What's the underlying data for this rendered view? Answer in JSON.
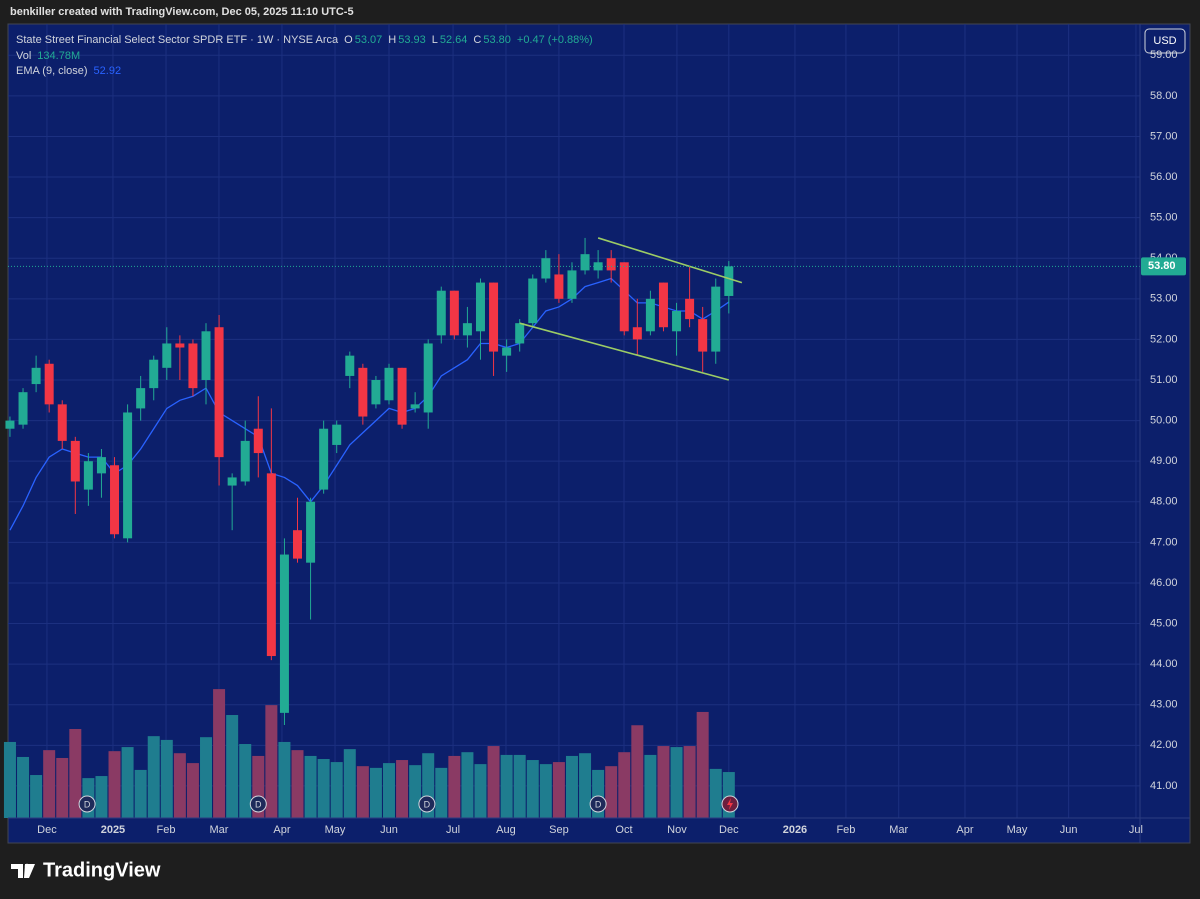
{
  "caption": "benkiller created with TradingView.com, Dec 05, 2025 11:10 UTC-5",
  "brand": "TradingView",
  "currency_button": "USD",
  "chart_data": {
    "type": "candlestick",
    "title": "State Street Financial Select Sector SPDR ETF · 1W · NYSE Arca",
    "ohlc_legend": [
      {
        "key": "O",
        "label": "53.07"
      },
      {
        "key": "H",
        "label": "53.93"
      },
      {
        "key": "L",
        "label": "52.64"
      },
      {
        "key": "C",
        "label": "53.80"
      }
    ],
    "change_label": "+0.47 (+0.88%)",
    "up_color": "#22ab94",
    "down_color": "#f23645",
    "x": [
      0,
      1,
      2,
      3,
      4,
      5,
      6,
      7,
      8,
      9,
      10,
      11,
      12,
      13,
      14,
      15,
      16,
      17,
      18,
      19,
      20,
      21,
      22,
      23,
      24,
      25,
      26,
      27,
      28,
      29,
      30,
      31,
      32,
      33,
      34,
      35,
      36,
      37,
      38,
      39,
      40,
      41,
      42,
      43,
      44,
      45,
      46,
      47,
      48,
      49,
      50,
      51,
      52,
      53,
      54,
      55
    ],
    "open": [
      49.8,
      49.9,
      50.9,
      51.4,
      50.4,
      49.5,
      48.3,
      48.7,
      48.9,
      47.1,
      50.3,
      50.8,
      51.3,
      51.9,
      51.9,
      51.0,
      52.3,
      48.4,
      48.5,
      49.8,
      48.7,
      42.8,
      47.3,
      46.5,
      48.3,
      49.4,
      51.1,
      51.3,
      50.4,
      50.5,
      51.3,
      50.3,
      50.2,
      52.1,
      53.2,
      52.1,
      52.2,
      53.4,
      51.6,
      51.9,
      52.4,
      53.5,
      53.6,
      53.0,
      53.7,
      53.7,
      54.0,
      53.9,
      52.3,
      52.2,
      53.4,
      52.2,
      53.0,
      52.5,
      51.7,
      53.07
    ],
    "high": [
      50.1,
      50.8,
      51.6,
      51.5,
      50.5,
      49.6,
      49.2,
      49.3,
      49.1,
      50.4,
      51.1,
      51.6,
      52.3,
      52.1,
      52.0,
      52.4,
      52.6,
      48.7,
      50.0,
      50.6,
      50.3,
      47.1,
      48.1,
      48.1,
      50.0,
      50.0,
      51.7,
      51.4,
      51.1,
      51.4,
      51.3,
      50.7,
      52.0,
      53.3,
      53.2,
      52.8,
      53.5,
      53.4,
      52.0,
      52.5,
      53.6,
      54.2,
      54.1,
      53.9,
      54.5,
      54.2,
      54.2,
      53.9,
      53.0,
      53.2,
      53.4,
      52.9,
      53.8,
      52.8,
      53.5,
      53.93
    ],
    "low": [
      49.6,
      49.8,
      50.7,
      50.2,
      49.3,
      47.7,
      47.9,
      48.1,
      47.1,
      47.0,
      50.0,
      50.5,
      51.0,
      51.0,
      50.6,
      50.4,
      48.4,
      47.3,
      48.4,
      48.6,
      44.1,
      42.5,
      46.5,
      45.1,
      48.2,
      49.2,
      50.8,
      49.9,
      50.3,
      50.4,
      49.8,
      50.2,
      49.8,
      51.9,
      52.0,
      51.8,
      51.5,
      51.1,
      51.2,
      51.7,
      52.3,
      53.4,
      52.9,
      52.9,
      53.6,
      53.5,
      53.4,
      52.1,
      51.6,
      52.1,
      52.2,
      51.6,
      52.3,
      51.2,
      51.4,
      52.64
    ],
    "close": [
      50.0,
      50.7,
      51.3,
      50.4,
      49.5,
      48.5,
      49.0,
      49.1,
      47.2,
      50.2,
      50.8,
      51.5,
      51.9,
      51.8,
      50.8,
      52.2,
      49.1,
      48.6,
      49.5,
      49.2,
      44.2,
      46.7,
      46.6,
      48.0,
      49.8,
      49.9,
      51.6,
      50.1,
      51.0,
      51.3,
      49.9,
      50.4,
      51.9,
      53.2,
      52.1,
      52.4,
      53.4,
      51.7,
      51.8,
      52.4,
      53.5,
      54.0,
      53.0,
      53.7,
      54.1,
      53.9,
      53.7,
      52.2,
      52.0,
      53.0,
      52.3,
      52.7,
      52.5,
      51.7,
      53.3,
      53.8
    ],
    "volume": {
      "name": "Vol",
      "value_label": "134.78M",
      "up_color": "#1f7d8f",
      "down_color": "#8a3a64",
      "values": [
        223,
        179,
        126,
        199,
        176,
        261,
        117,
        123,
        196,
        208,
        141,
        240,
        229,
        190,
        161,
        237,
        378,
        302,
        217,
        182,
        331,
        223,
        199,
        182,
        173,
        164,
        202,
        152,
        147,
        161,
        170,
        155,
        190,
        147,
        182,
        193,
        158,
        211,
        185,
        185,
        170,
        158,
        164,
        182,
        190,
        141,
        152,
        193,
        272,
        185,
        211,
        208,
        211,
        311,
        144,
        134.78
      ]
    },
    "volume_ylim": [
      0,
      1000
    ],
    "ema": {
      "name": "EMA (9, close)",
      "value_label": "52.92",
      "color": "#2962ff",
      "values": [
        47.3,
        47.9,
        48.6,
        49.1,
        49.3,
        49.2,
        49.1,
        49.1,
        48.7,
        48.9,
        49.3,
        49.8,
        50.3,
        50.5,
        50.6,
        50.8,
        50.2,
        50.0,
        49.8,
        49.6,
        48.7,
        48.6,
        48.4,
        48.0,
        48.4,
        48.9,
        49.4,
        49.7,
        50.0,
        50.3,
        50.2,
        50.3,
        50.6,
        51.1,
        51.3,
        51.5,
        51.9,
        51.9,
        51.8,
        51.9,
        52.3,
        52.7,
        52.8,
        53.0,
        53.3,
        53.4,
        53.5,
        53.2,
        52.9,
        52.9,
        52.8,
        52.7,
        52.7,
        52.5,
        52.7,
        52.92
      ]
    },
    "trendlines": [
      {
        "color": "#9ccc65",
        "x": [
          45,
          56
        ],
        "y": [
          54.5,
          53.4
        ]
      },
      {
        "color": "#9ccc65",
        "x": [
          39,
          55
        ],
        "y": [
          52.4,
          51.0
        ]
      }
    ],
    "last_price": {
      "value": 53.8,
      "label": "53.80"
    },
    "markers": [
      {
        "x": 5.9,
        "label": "D"
      },
      {
        "x": 19.0,
        "label": "D"
      },
      {
        "x": 31.9,
        "label": "D"
      },
      {
        "x": 45.0,
        "label": "D"
      }
    ],
    "xlim": [
      -0.15,
      86.46
    ],
    "ylim": [
      40.21,
      59.77
    ],
    "yticks": [
      {
        "value": 41,
        "label": "41.00"
      },
      {
        "value": 42,
        "label": "42.00"
      },
      {
        "value": 43,
        "label": "43.00"
      },
      {
        "value": 44,
        "label": "44.00"
      },
      {
        "value": 45,
        "label": "45.00"
      },
      {
        "value": 46,
        "label": "46.00"
      },
      {
        "value": 47,
        "label": "47.00"
      },
      {
        "value": 48,
        "label": "48.00"
      },
      {
        "value": 49,
        "label": "49.00"
      },
      {
        "value": 50,
        "label": "50.00"
      },
      {
        "value": 51,
        "label": "51.00"
      },
      {
        "value": 52,
        "label": "52.00"
      },
      {
        "value": 53,
        "label": "53.00"
      },
      {
        "value": 54,
        "label": "54.00"
      },
      {
        "value": 55,
        "label": "55.00"
      },
      {
        "value": 56,
        "label": "56.00"
      },
      {
        "value": 57,
        "label": "57.00"
      },
      {
        "value": 58,
        "label": "58.00"
      },
      {
        "value": 59,
        "label": "59.00"
      }
    ],
    "xticks": [
      {
        "value": 2.83,
        "label": "Dec"
      },
      {
        "value": 7.88,
        "label": "2025"
      },
      {
        "value": 11.94,
        "label": "Feb"
      },
      {
        "value": 15.99,
        "label": "Mar"
      },
      {
        "value": 20.81,
        "label": "Apr"
      },
      {
        "value": 24.87,
        "label": "May"
      },
      {
        "value": 29.0,
        "label": "Jun"
      },
      {
        "value": 33.9,
        "label": "Jul"
      },
      {
        "value": 37.95,
        "label": "Aug"
      },
      {
        "value": 42.0,
        "label": "Sep"
      },
      {
        "value": 46.98,
        "label": "Oct"
      },
      {
        "value": 51.03,
        "label": "Nov"
      },
      {
        "value": 55.0,
        "label": "Dec"
      },
      {
        "value": 60.06,
        "label": "2026"
      },
      {
        "value": 63.96,
        "label": "Feb"
      },
      {
        "value": 68.0,
        "label": "Mar"
      },
      {
        "value": 73.07,
        "label": "Apr"
      },
      {
        "value": 77.05,
        "label": "May"
      },
      {
        "value": 81.0,
        "label": "Jun"
      },
      {
        "value": 86.15,
        "label": "Jul"
      }
    ],
    "grid": true
  }
}
